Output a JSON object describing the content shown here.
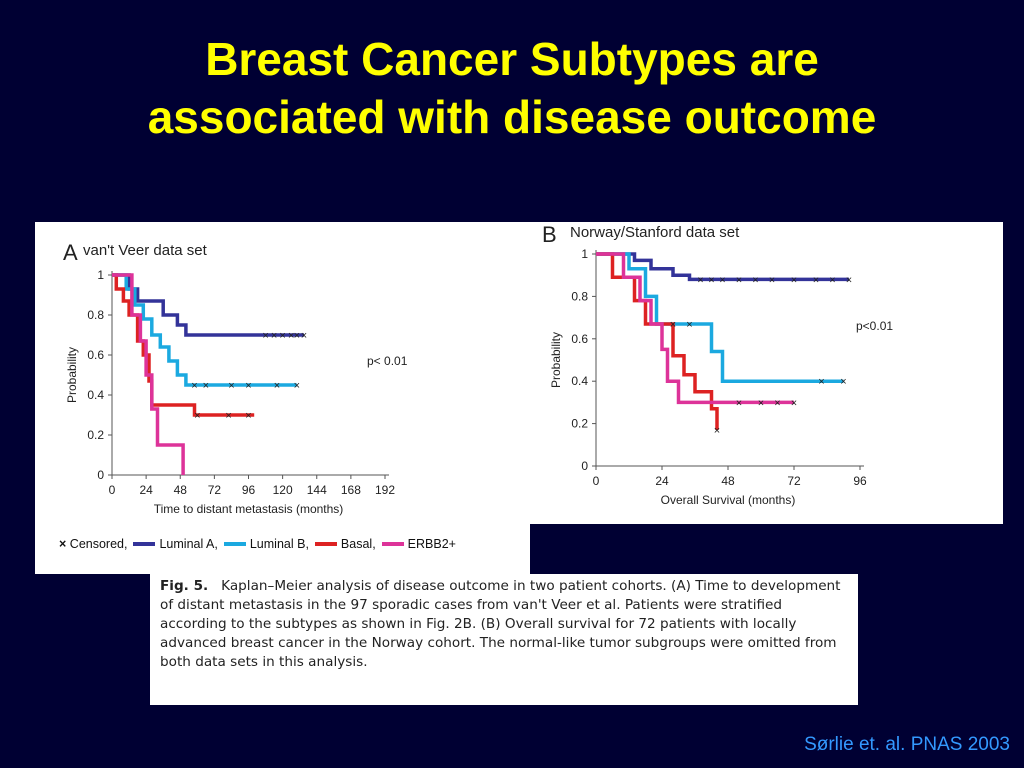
{
  "slide": {
    "title_line1": "Breast Cancer Subtypes are",
    "title_line2": "associated with disease outcome",
    "citation": "Sørlie et. al. PNAS 2003"
  },
  "caption": {
    "fig_label": "Fig. 5.",
    "text": "Kaplan–Meier analysis of disease outcome in two patient cohorts. (A) Time to development of distant metastasis in the 97 sporadic cases from van't Veer et al. Patients were stratified according to the subtypes as shown in Fig. 2B. (B) Overall survival for 72 patients with locally advanced breast cancer in the Norway cohort. The normal-like tumor subgroups were omitted from both data sets in this analysis."
  },
  "legend": {
    "censored": "Censored,",
    "items": [
      {
        "label": "Luminal A,",
        "color": "#333399"
      },
      {
        "label": "Luminal B,",
        "color": "#1ba9e0"
      },
      {
        "label": "Basal,",
        "color": "#dd2222"
      },
      {
        "label": "ERBB2+",
        "color": "#dd3399"
      }
    ]
  },
  "chart_data": [
    {
      "type": "line",
      "panel_letter": "A",
      "title": "van't Veer data set",
      "xlabel": "Time to distant metastasis (months)",
      "ylabel": "Probability",
      "xlim": [
        0,
        192
      ],
      "ylim": [
        0,
        1
      ],
      "xticks": [
        0,
        24,
        48,
        72,
        96,
        120,
        144,
        168,
        192
      ],
      "yticks": [
        0,
        0.2,
        0.4,
        0.6,
        0.8,
        1
      ],
      "ytick_labels": [
        "0",
        "0.2",
        "0.4",
        "0.6",
        "0.8",
        "1"
      ],
      "annotation": "p< 0.01",
      "series": [
        {
          "color": "#333399",
          "points": [
            [
              0,
              1
            ],
            [
              12,
              1
            ],
            [
              12,
              0.93
            ],
            [
              18,
              0.93
            ],
            [
              18,
              0.87
            ],
            [
              36,
              0.87
            ],
            [
              36,
              0.8
            ],
            [
              46,
              0.8
            ],
            [
              46,
              0.75
            ],
            [
              52,
              0.75
            ],
            [
              52,
              0.7
            ],
            [
              135,
              0.7
            ]
          ],
          "censored": [
            108,
            114,
            120,
            126,
            130,
            135
          ]
        },
        {
          "color": "#1ba9e0",
          "points": [
            [
              0,
              1
            ],
            [
              10,
              1
            ],
            [
              10,
              0.93
            ],
            [
              16,
              0.93
            ],
            [
              16,
              0.85
            ],
            [
              22,
              0.85
            ],
            [
              22,
              0.78
            ],
            [
              28,
              0.78
            ],
            [
              28,
              0.7
            ],
            [
              34,
              0.7
            ],
            [
              34,
              0.64
            ],
            [
              40,
              0.64
            ],
            [
              40,
              0.57
            ],
            [
              46,
              0.57
            ],
            [
              46,
              0.5
            ],
            [
              52,
              0.5
            ],
            [
              52,
              0.45
            ],
            [
              130,
              0.45
            ]
          ],
          "censored": [
            58,
            66,
            84,
            96,
            116,
            130
          ]
        },
        {
          "color": "#dd2222",
          "points": [
            [
              0,
              1
            ],
            [
              3,
              1
            ],
            [
              3,
              0.93
            ],
            [
              8,
              0.93
            ],
            [
              8,
              0.87
            ],
            [
              12,
              0.87
            ],
            [
              12,
              0.8
            ],
            [
              18,
              0.8
            ],
            [
              18,
              0.67
            ],
            [
              22,
              0.67
            ],
            [
              22,
              0.6
            ],
            [
              26,
              0.6
            ],
            [
              26,
              0.47
            ],
            [
              28,
              0.47
            ],
            [
              28,
              0.35
            ],
            [
              58,
              0.35
            ],
            [
              58,
              0.3
            ],
            [
              100,
              0.3
            ]
          ],
          "censored": [
            60,
            82,
            96
          ]
        },
        {
          "color": "#dd3399",
          "points": [
            [
              0,
              1
            ],
            [
              14,
              1
            ],
            [
              14,
              0.8
            ],
            [
              20,
              0.8
            ],
            [
              20,
              0.67
            ],
            [
              24,
              0.67
            ],
            [
              24,
              0.5
            ],
            [
              28,
              0.5
            ],
            [
              28,
              0.33
            ],
            [
              32,
              0.33
            ],
            [
              32,
              0.15
            ],
            [
              50,
              0.15
            ],
            [
              50,
              0
            ]
          ],
          "censored": []
        }
      ]
    },
    {
      "type": "line",
      "panel_letter": "B",
      "title": "Norway/Stanford data set",
      "xlabel": "Overall Survival (months)",
      "ylabel": "Probability",
      "xlim": [
        0,
        96
      ],
      "ylim": [
        0,
        1
      ],
      "xticks": [
        0,
        24,
        48,
        72,
        96
      ],
      "yticks": [
        0,
        0.2,
        0.4,
        0.6,
        0.8,
        1
      ],
      "ytick_labels": [
        "0",
        "0.2",
        "0.4",
        "0.6",
        "0.8",
        "1"
      ],
      "annotation": "p<0.01",
      "series": [
        {
          "color": "#333399",
          "points": [
            [
              0,
              1
            ],
            [
              14,
              1
            ],
            [
              14,
              0.97
            ],
            [
              20,
              0.97
            ],
            [
              20,
              0.93
            ],
            [
              28,
              0.93
            ],
            [
              28,
              0.9
            ],
            [
              34,
              0.9
            ],
            [
              34,
              0.88
            ],
            [
              92,
              0.88
            ]
          ],
          "censored": [
            38,
            42,
            46,
            52,
            58,
            64,
            72,
            80,
            86,
            92
          ]
        },
        {
          "color": "#1ba9e0",
          "points": [
            [
              0,
              1
            ],
            [
              12,
              1
            ],
            [
              12,
              0.93
            ],
            [
              18,
              0.93
            ],
            [
              18,
              0.8
            ],
            [
              22,
              0.8
            ],
            [
              22,
              0.67
            ],
            [
              42,
              0.67
            ],
            [
              42,
              0.54
            ],
            [
              46,
              0.54
            ],
            [
              46,
              0.4
            ],
            [
              90,
              0.4
            ]
          ],
          "censored": [
            28,
            34,
            82,
            90
          ]
        },
        {
          "color": "#dd2222",
          "points": [
            [
              0,
              1
            ],
            [
              6,
              1
            ],
            [
              6,
              0.89
            ],
            [
              14,
              0.89
            ],
            [
              14,
              0.78
            ],
            [
              18,
              0.78
            ],
            [
              18,
              0.67
            ],
            [
              28,
              0.67
            ],
            [
              28,
              0.52
            ],
            [
              32,
              0.52
            ],
            [
              32,
              0.43
            ],
            [
              36,
              0.43
            ],
            [
              36,
              0.35
            ],
            [
              42,
              0.35
            ],
            [
              42,
              0.27
            ],
            [
              44,
              0.27
            ],
            [
              44,
              0.17
            ]
          ],
          "censored": [
            44
          ]
        },
        {
          "color": "#dd3399",
          "points": [
            [
              0,
              1
            ],
            [
              10,
              1
            ],
            [
              10,
              0.89
            ],
            [
              16,
              0.89
            ],
            [
              16,
              0.78
            ],
            [
              20,
              0.78
            ],
            [
              20,
              0.67
            ],
            [
              24,
              0.67
            ],
            [
              24,
              0.55
            ],
            [
              26,
              0.55
            ],
            [
              26,
              0.4
            ],
            [
              30,
              0.4
            ],
            [
              30,
              0.3
            ],
            [
              72,
              0.3
            ]
          ],
          "censored": [
            52,
            60,
            66,
            72
          ]
        }
      ]
    }
  ]
}
